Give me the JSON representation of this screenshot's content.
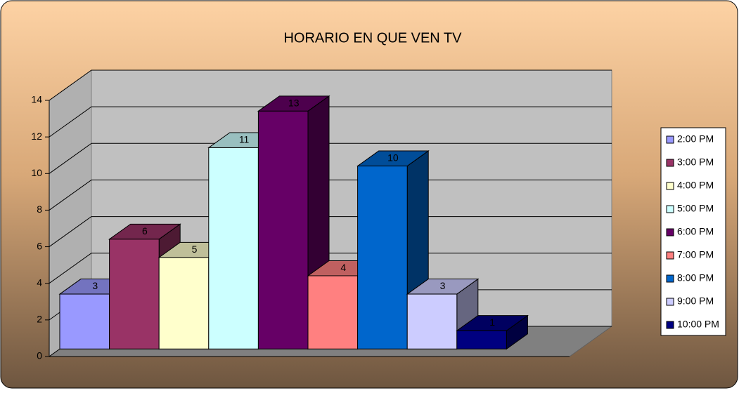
{
  "chart_data": {
    "type": "bar",
    "title": "HORARIO EN QUE VEN TV",
    "categories": [
      "2:00 PM",
      "3:00 PM",
      "4:00 PM",
      "5:00 PM",
      "6:00 PM",
      "7:00 PM",
      "8:00 PM",
      "9:00 PM",
      "10:00 PM"
    ],
    "values": [
      3,
      6,
      5,
      11,
      13,
      4,
      10,
      3,
      1
    ],
    "colors": [
      "#9999ff",
      "#993366",
      "#ffffcc",
      "#ccffff",
      "#660066",
      "#ff8080",
      "#0066cc",
      "#ccccff",
      "#000080"
    ],
    "ylim": [
      0,
      14
    ],
    "yticks": [
      0,
      2,
      4,
      6,
      8,
      10,
      12,
      14
    ],
    "grid": true,
    "legend": "right"
  }
}
